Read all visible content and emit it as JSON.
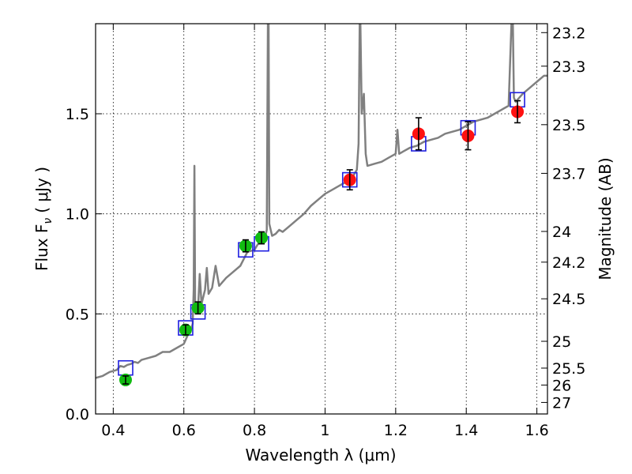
{
  "chart_data": {
    "type": "scatter",
    "xlabel": "Wavelength  λ (μm)",
    "ylabel": "Flux  F",
    "ylabel_sub": "ν",
    "ylabel_unit": "( μJy )",
    "y2label": "Magnitude (AB)",
    "xlim": [
      0.35,
      1.63
    ],
    "ylim": [
      0.0,
      1.95
    ],
    "grid": true,
    "x_ticks": [
      {
        "value": 0.4,
        "label": "0.4"
      },
      {
        "value": 0.6,
        "label": "0.6"
      },
      {
        "value": 0.8,
        "label": "0.8"
      },
      {
        "value": 1.0,
        "label": "1"
      },
      {
        "value": 1.2,
        "label": "1.2"
      },
      {
        "value": 1.4,
        "label": "1.4"
      },
      {
        "value": 1.6,
        "label": "1.6"
      }
    ],
    "y_ticks": [
      {
        "value": 0.0,
        "label": "0.0"
      },
      {
        "value": 0.5,
        "label": "0.5"
      },
      {
        "value": 1.0,
        "label": "1.0"
      },
      {
        "value": 1.5,
        "label": "1.5"
      }
    ],
    "mag_ticks": [
      {
        "mag": 23.2,
        "label": "23.2"
      },
      {
        "mag": 23.3,
        "label": "23.3"
      },
      {
        "mag": 23.5,
        "label": "23.5"
      },
      {
        "mag": 23.7,
        "label": "23.7"
      },
      {
        "mag": 24,
        "label": "24"
      },
      {
        "mag": 24.2,
        "label": "24.2"
      },
      {
        "mag": 24.5,
        "label": "24.5"
      },
      {
        "mag": 25,
        "label": "25"
      },
      {
        "mag": 25.5,
        "label": "25.5"
      },
      {
        "mag": 26,
        "label": "26"
      },
      {
        "mag": 27,
        "label": "27"
      }
    ],
    "series": [
      {
        "type": "line",
        "color": "#808080",
        "points": [
          [
            0.35,
            0.18
          ],
          [
            0.37,
            0.19
          ],
          [
            0.39,
            0.21
          ],
          [
            0.41,
            0.22
          ],
          [
            0.42,
            0.24
          ],
          [
            0.43,
            0.235
          ],
          [
            0.44,
            0.245
          ],
          [
            0.45,
            0.25
          ],
          [
            0.46,
            0.26
          ],
          [
            0.47,
            0.255
          ],
          [
            0.48,
            0.27
          ],
          [
            0.5,
            0.28
          ],
          [
            0.52,
            0.29
          ],
          [
            0.54,
            0.31
          ],
          [
            0.56,
            0.31
          ],
          [
            0.58,
            0.33
          ],
          [
            0.6,
            0.35
          ],
          [
            0.61,
            0.39
          ],
          [
            0.62,
            0.42
          ],
          [
            0.625,
            0.45
          ],
          [
            0.628,
            0.62
          ],
          [
            0.63,
            1.24
          ],
          [
            0.632,
            0.55
          ],
          [
            0.64,
            0.52
          ],
          [
            0.645,
            0.7
          ],
          [
            0.65,
            0.55
          ],
          [
            0.66,
            0.62
          ],
          [
            0.665,
            0.73
          ],
          [
            0.67,
            0.6
          ],
          [
            0.68,
            0.63
          ],
          [
            0.69,
            0.74
          ],
          [
            0.7,
            0.64
          ],
          [
            0.72,
            0.68
          ],
          [
            0.74,
            0.71
          ],
          [
            0.76,
            0.74
          ],
          [
            0.78,
            0.81
          ],
          [
            0.8,
            0.82
          ],
          [
            0.81,
            0.85
          ],
          [
            0.82,
            0.87
          ],
          [
            0.83,
            0.88
          ],
          [
            0.835,
            0.92
          ],
          [
            0.838,
            1.95
          ],
          [
            0.84,
            1.95
          ],
          [
            0.842,
            0.95
          ],
          [
            0.85,
            0.89
          ],
          [
            0.86,
            0.9
          ],
          [
            0.87,
            0.92
          ],
          [
            0.88,
            0.91
          ],
          [
            0.9,
            0.94
          ],
          [
            0.92,
            0.97
          ],
          [
            0.94,
            1.0
          ],
          [
            0.96,
            1.04
          ],
          [
            0.98,
            1.07
          ],
          [
            1.0,
            1.1
          ],
          [
            1.02,
            1.12
          ],
          [
            1.04,
            1.14
          ],
          [
            1.06,
            1.16
          ],
          [
            1.08,
            1.19
          ],
          [
            1.09,
            1.22
          ],
          [
            1.095,
            1.35
          ],
          [
            1.098,
            1.95
          ],
          [
            1.1,
            1.95
          ],
          [
            1.104,
            1.5
          ],
          [
            1.11,
            1.6
          ],
          [
            1.115,
            1.3
          ],
          [
            1.12,
            1.24
          ],
          [
            1.14,
            1.25
          ],
          [
            1.16,
            1.26
          ],
          [
            1.18,
            1.28
          ],
          [
            1.2,
            1.3
          ],
          [
            1.205,
            1.42
          ],
          [
            1.21,
            1.3
          ],
          [
            1.22,
            1.31
          ],
          [
            1.24,
            1.33
          ],
          [
            1.26,
            1.34
          ],
          [
            1.28,
            1.36
          ],
          [
            1.3,
            1.37
          ],
          [
            1.32,
            1.38
          ],
          [
            1.34,
            1.4
          ],
          [
            1.36,
            1.41
          ],
          [
            1.38,
            1.42
          ],
          [
            1.4,
            1.44
          ],
          [
            1.42,
            1.46
          ],
          [
            1.44,
            1.47
          ],
          [
            1.46,
            1.48
          ],
          [
            1.48,
            1.5
          ],
          [
            1.5,
            1.52
          ],
          [
            1.52,
            1.54
          ],
          [
            1.528,
            1.95
          ],
          [
            1.532,
            1.95
          ],
          [
            1.535,
            1.58
          ],
          [
            1.54,
            1.56
          ],
          [
            1.56,
            1.6
          ],
          [
            1.58,
            1.63
          ],
          [
            1.6,
            1.66
          ],
          [
            1.62,
            1.69
          ],
          [
            1.63,
            1.69
          ]
        ]
      },
      {
        "type": "scatter",
        "marker": "square-open",
        "color": "#1f1fe0",
        "points": [
          {
            "x": 0.435,
            "y": 0.23
          },
          {
            "x": 0.605,
            "y": 0.43
          },
          {
            "x": 0.64,
            "y": 0.51
          },
          {
            "x": 0.775,
            "y": 0.82
          },
          {
            "x": 0.82,
            "y": 0.85
          },
          {
            "x": 1.07,
            "y": 1.17
          },
          {
            "x": 1.265,
            "y": 1.35
          },
          {
            "x": 1.405,
            "y": 1.43
          },
          {
            "x": 1.545,
            "y": 1.57
          }
        ]
      },
      {
        "type": "scatter",
        "marker": "circle",
        "color": "#11bb11",
        "points": [
          {
            "x": 0.435,
            "y": 0.17,
            "err": 0.02
          },
          {
            "x": 0.605,
            "y": 0.42,
            "err": 0.025
          },
          {
            "x": 0.64,
            "y": 0.53,
            "err": 0.03
          },
          {
            "x": 0.775,
            "y": 0.84,
            "err": 0.03
          },
          {
            "x": 0.82,
            "y": 0.88,
            "err": 0.03
          }
        ]
      },
      {
        "type": "scatter",
        "marker": "circle",
        "color": "#ff1111",
        "points": [
          {
            "x": 1.07,
            "y": 1.17,
            "err": 0.05
          },
          {
            "x": 1.265,
            "y": 1.4,
            "err": 0.08
          },
          {
            "x": 1.405,
            "y": 1.39,
            "err": 0.07
          },
          {
            "x": 1.545,
            "y": 1.51,
            "err": 0.055
          }
        ]
      }
    ]
  }
}
